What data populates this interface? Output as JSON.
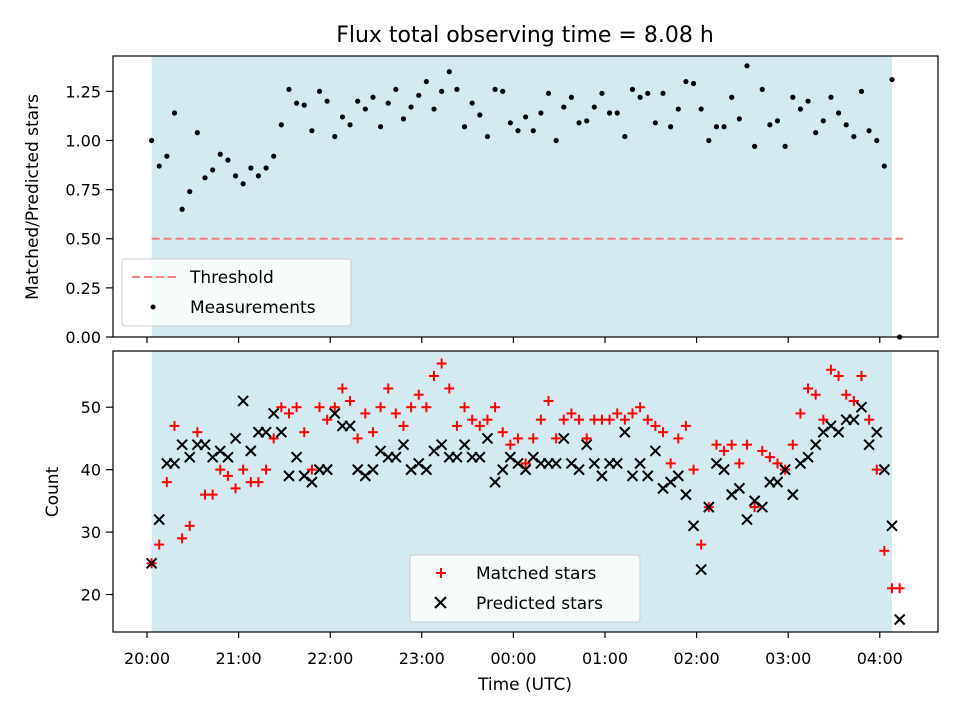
{
  "chart_data": {
    "title": "Flux total observing time = 8.08 h",
    "xlabel": "Time (UTC)",
    "x_ticks": [
      "20:00",
      "21:00",
      "22:00",
      "23:00",
      "00:00",
      "01:00",
      "02:00",
      "03:00",
      "04:00"
    ],
    "observing_window": {
      "start": "20:03",
      "end": "04:08",
      "color": "#d3eaf0"
    },
    "panels": [
      {
        "type": "scatter",
        "ylabel": "Matched/Predicted stars",
        "ylim": [
          0,
          1.43
        ],
        "y_ticks": [
          "0.00",
          "0.25",
          "0.50",
          "0.75",
          "1.00",
          "1.25"
        ],
        "threshold": {
          "name": "Threshold",
          "value": 0.5,
          "color": "#f08080",
          "style": "dashed"
        },
        "legend_position": "lower-left",
        "series": [
          {
            "name": "Measurements",
            "color": "#000000",
            "marker": "dot",
            "x": [
              "20:03",
              "20:08",
              "20:13",
              "20:18",
              "20:23",
              "20:28",
              "20:33",
              "20:38",
              "20:43",
              "20:48",
              "20:53",
              "20:58",
              "21:03",
              "21:08",
              "21:13",
              "21:18",
              "21:23",
              "21:28",
              "21:33",
              "21:38",
              "21:43",
              "21:48",
              "21:53",
              "21:58",
              "22:03",
              "22:08",
              "22:13",
              "22:18",
              "22:23",
              "22:28",
              "22:33",
              "22:38",
              "22:43",
              "22:48",
              "22:53",
              "22:58",
              "23:03",
              "23:08",
              "23:13",
              "23:18",
              "23:23",
              "23:28",
              "23:33",
              "23:38",
              "23:43",
              "23:48",
              "23:53",
              "23:58",
              "00:03",
              "00:08",
              "00:13",
              "00:18",
              "00:23",
              "00:28",
              "00:33",
              "00:38",
              "00:43",
              "00:48",
              "00:53",
              "00:58",
              "01:03",
              "01:08",
              "01:13",
              "01:18",
              "01:23",
              "01:28",
              "01:33",
              "01:38",
              "01:43",
              "01:48",
              "01:53",
              "01:58",
              "02:03",
              "02:08",
              "02:13",
              "02:18",
              "02:23",
              "02:28",
              "02:33",
              "02:38",
              "02:43",
              "02:48",
              "02:53",
              "02:58",
              "03:03",
              "03:08",
              "03:13",
              "03:18",
              "03:23",
              "03:28",
              "03:33",
              "03:38",
              "03:43",
              "03:48",
              "03:53",
              "03:58",
              "04:03",
              "04:08",
              "04:13"
            ],
            "values": [
              1.0,
              0.87,
              0.92,
              1.14,
              0.65,
              0.74,
              1.04,
              0.81,
              0.85,
              0.93,
              0.9,
              0.82,
              0.78,
              0.86,
              0.82,
              0.86,
              0.92,
              1.08,
              1.26,
              1.19,
              1.18,
              1.05,
              1.25,
              1.2,
              1.02,
              1.12,
              1.08,
              1.2,
              1.16,
              1.22,
              1.07,
              1.19,
              1.26,
              1.11,
              1.17,
              1.23,
              1.3,
              1.16,
              1.25,
              1.35,
              1.26,
              1.07,
              1.19,
              1.13,
              1.02,
              1.26,
              1.25,
              1.09,
              1.05,
              1.12,
              1.05,
              1.14,
              1.24,
              1.0,
              1.17,
              1.22,
              1.09,
              1.1,
              1.17,
              1.24,
              1.14,
              1.14,
              1.02,
              1.26,
              1.22,
              1.24,
              1.09,
              1.24,
              1.07,
              1.16,
              1.3,
              1.29,
              1.16,
              1.0,
              1.07,
              1.07,
              1.22,
              1.11,
              1.38,
              0.97,
              1.26,
              1.08,
              1.1,
              0.97,
              1.22,
              1.16,
              1.2,
              1.04,
              1.1,
              1.22,
              1.14,
              1.08,
              1.02,
              1.25,
              1.05,
              1.0,
              0.87,
              1.31,
              0.0
            ]
          }
        ]
      },
      {
        "type": "scatter",
        "ylabel": "Count",
        "ylim": [
          14,
          59
        ],
        "y_ticks": [
          "20",
          "30",
          "40",
          "50"
        ],
        "legend_position": "lower-center",
        "series": [
          {
            "name": "Matched stars",
            "color": "#ff0000",
            "marker": "plus",
            "x": [
              "20:03",
              "20:08",
              "20:13",
              "20:18",
              "20:23",
              "20:28",
              "20:33",
              "20:38",
              "20:43",
              "20:48",
              "20:53",
              "20:58",
              "21:03",
              "21:08",
              "21:13",
              "21:18",
              "21:23",
              "21:28",
              "21:33",
              "21:38",
              "21:43",
              "21:48",
              "21:53",
              "21:58",
              "22:03",
              "22:08",
              "22:13",
              "22:18",
              "22:23",
              "22:28",
              "22:33",
              "22:38",
              "22:43",
              "22:48",
              "22:53",
              "22:58",
              "23:03",
              "23:08",
              "23:13",
              "23:18",
              "23:23",
              "23:28",
              "23:33",
              "23:38",
              "23:43",
              "23:48",
              "23:53",
              "23:58",
              "00:03",
              "00:08",
              "00:13",
              "00:18",
              "00:23",
              "00:28",
              "00:33",
              "00:38",
              "00:43",
              "00:48",
              "00:53",
              "00:58",
              "01:03",
              "01:08",
              "01:13",
              "01:18",
              "01:23",
              "01:28",
              "01:33",
              "01:38",
              "01:43",
              "01:48",
              "01:53",
              "01:58",
              "02:03",
              "02:08",
              "02:13",
              "02:18",
              "02:23",
              "02:28",
              "02:33",
              "02:38",
              "02:43",
              "02:48",
              "02:53",
              "02:58",
              "03:03",
              "03:08",
              "03:13",
              "03:18",
              "03:23",
              "03:28",
              "03:33",
              "03:38",
              "03:43",
              "03:48",
              "03:53",
              "03:58",
              "04:03",
              "04:08",
              "04:13"
            ],
            "values": [
              25,
              28,
              38,
              47,
              29,
              31,
              46,
              36,
              36,
              40,
              39,
              37,
              40,
              38,
              38,
              40,
              45,
              50,
              49,
              50,
              46,
              40,
              50,
              48,
              50,
              53,
              51,
              45,
              49,
              46,
              50,
              53,
              49,
              47,
              50,
              52,
              50,
              55,
              57,
              53,
              47,
              50,
              48,
              47,
              48,
              50,
              46,
              44,
              45,
              41,
              45,
              48,
              51,
              45,
              48,
              49,
              48,
              45,
              48,
              48,
              48,
              49,
              48,
              49,
              50,
              48,
              47,
              46,
              41,
              45,
              47,
              40,
              28,
              34,
              44,
              43,
              44,
              41,
              44,
              34,
              43,
              42,
              41,
              40,
              44,
              49,
              53,
              52,
              48,
              56,
              55,
              52,
              51,
              55,
              48,
              40,
              27,
              21,
              21
            ]
          },
          {
            "name": "Predicted stars",
            "color": "#000000",
            "marker": "x",
            "x": [
              "20:03",
              "20:08",
              "20:13",
              "20:18",
              "20:23",
              "20:28",
              "20:33",
              "20:38",
              "20:43",
              "20:48",
              "20:53",
              "20:58",
              "21:03",
              "21:08",
              "21:13",
              "21:18",
              "21:23",
              "21:28",
              "21:33",
              "21:38",
              "21:43",
              "21:48",
              "21:53",
              "21:58",
              "22:03",
              "22:08",
              "22:13",
              "22:18",
              "22:23",
              "22:28",
              "22:33",
              "22:38",
              "22:43",
              "22:48",
              "22:53",
              "22:58",
              "23:03",
              "23:08",
              "23:13",
              "23:18",
              "23:23",
              "23:28",
              "23:33",
              "23:38",
              "23:43",
              "23:48",
              "23:53",
              "23:58",
              "00:03",
              "00:08",
              "00:13",
              "00:18",
              "00:23",
              "00:28",
              "00:33",
              "00:38",
              "00:43",
              "00:48",
              "00:53",
              "00:58",
              "01:03",
              "01:08",
              "01:13",
              "01:18",
              "01:23",
              "01:28",
              "01:33",
              "01:38",
              "01:43",
              "01:48",
              "01:53",
              "01:58",
              "02:03",
              "02:08",
              "02:13",
              "02:18",
              "02:23",
              "02:28",
              "02:33",
              "02:38",
              "02:43",
              "02:48",
              "02:53",
              "02:58",
              "03:03",
              "03:08",
              "03:13",
              "03:18",
              "03:23",
              "03:28",
              "03:33",
              "03:38",
              "03:43",
              "03:48",
              "03:53",
              "03:58",
              "04:03",
              "04:08",
              "04:13"
            ],
            "values": [
              25,
              32,
              41,
              41,
              44,
              42,
              44,
              44,
              42,
              43,
              42,
              45,
              51,
              43,
              46,
              46,
              49,
              46,
              39,
              42,
              39,
              38,
              40,
              40,
              49,
              47,
              47,
              40,
              39,
              40,
              43,
              42,
              42,
              44,
              40,
              41,
              40,
              43,
              44,
              42,
              42,
              44,
              42,
              42,
              45,
              38,
              40,
              42,
              41,
              40,
              42,
              41,
              41,
              41,
              45,
              41,
              40,
              44,
              41,
              39,
              41,
              41,
              46,
              39,
              41,
              39,
              43,
              37,
              38,
              39,
              36,
              31,
              24,
              34,
              41,
              40,
              36,
              37,
              32,
              35,
              34,
              38,
              38,
              40,
              36,
              41,
              42,
              44,
              46,
              47,
              46,
              48,
              48,
              50,
              44,
              46,
              40,
              31,
              16
            ]
          }
        ]
      }
    ]
  }
}
